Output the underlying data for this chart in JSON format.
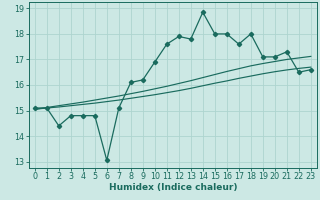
{
  "title": "",
  "xlabel": "Humidex (Indice chaleur)",
  "ylabel": "",
  "bg_color": "#cce8e4",
  "grid_color": "#aed4cf",
  "line_color": "#1a6b5e",
  "x_data": [
    0,
    1,
    2,
    3,
    4,
    5,
    6,
    7,
    8,
    9,
    10,
    11,
    12,
    13,
    14,
    15,
    16,
    17,
    18,
    19,
    20,
    21,
    22,
    23
  ],
  "y_main": [
    15.1,
    15.1,
    14.4,
    14.8,
    14.8,
    14.8,
    13.05,
    15.1,
    16.1,
    16.2,
    16.9,
    17.6,
    17.9,
    17.8,
    18.85,
    18.0,
    18.0,
    17.6,
    18.0,
    17.1,
    17.1,
    17.3,
    16.5,
    16.6
  ],
  "y_trend1": [
    15.05,
    15.12,
    15.19,
    15.26,
    15.33,
    15.41,
    15.49,
    15.57,
    15.66,
    15.75,
    15.85,
    15.95,
    16.06,
    16.17,
    16.29,
    16.41,
    16.53,
    16.64,
    16.75,
    16.84,
    16.92,
    17.0,
    17.06,
    17.12
  ],
  "y_trend2": [
    15.05,
    15.1,
    15.14,
    15.19,
    15.24,
    15.29,
    15.35,
    15.41,
    15.48,
    15.55,
    15.62,
    15.7,
    15.78,
    15.87,
    15.97,
    16.07,
    16.16,
    16.26,
    16.35,
    16.44,
    16.52,
    16.59,
    16.65,
    16.7
  ],
  "ylim": [
    12.75,
    19.25
  ],
  "xlim": [
    -0.5,
    23.5
  ],
  "yticks": [
    13,
    14,
    15,
    16,
    17,
    18,
    19
  ],
  "xticks": [
    0,
    1,
    2,
    3,
    4,
    5,
    6,
    7,
    8,
    9,
    10,
    11,
    12,
    13,
    14,
    15,
    16,
    17,
    18,
    19,
    20,
    21,
    22,
    23
  ],
  "fontsize_label": 6.5,
  "fontsize_tick": 5.8,
  "xlabel_color": "#1a6b5e",
  "tick_color": "#1a6b5e",
  "spine_color": "#1a6b5e"
}
